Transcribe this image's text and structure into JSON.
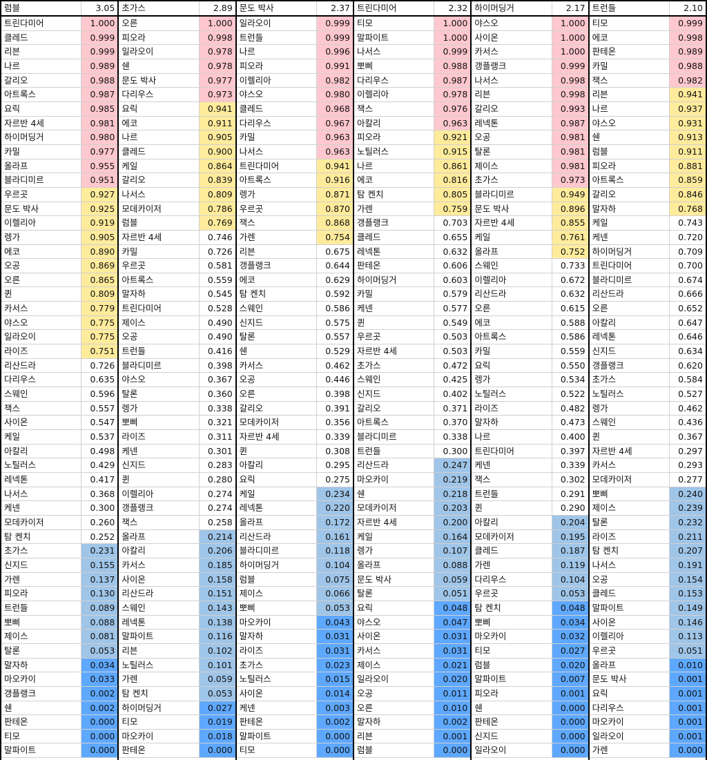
{
  "colors": {
    "high": "#ffc7ce",
    "mid": "#ffeb9c",
    "low": "#9fc5e8",
    "verylow": "#5ea8ff"
  },
  "thresholds": {
    "high": 0.95,
    "mid": 0.75,
    "low": 0.25,
    "verylow": 0.05
  },
  "columns": [
    {
      "header": "럼블",
      "score": "3.05",
      "rows": [
        [
          "트린다미어",
          "1.000"
        ],
        [
          "클레드",
          "0.999"
        ],
        [
          "리븐",
          "0.999"
        ],
        [
          "나르",
          "0.989"
        ],
        [
          "갈리오",
          "0.988"
        ],
        [
          "아트록스",
          "0.987"
        ],
        [
          "요릭",
          "0.985"
        ],
        [
          "자르반 4세",
          "0.981"
        ],
        [
          "하이머딩거",
          "0.980"
        ],
        [
          "카밀",
          "0.977"
        ],
        [
          "올라프",
          "0.955"
        ],
        [
          "블라디미르",
          "0.951"
        ],
        [
          "우르곳",
          "0.927"
        ],
        [
          "문도 박사",
          "0.925"
        ],
        [
          "이렐리아",
          "0.919"
        ],
        [
          "렝가",
          "0.905"
        ],
        [
          "에코",
          "0.890"
        ],
        [
          "오공",
          "0.869"
        ],
        [
          "오른",
          "0.865"
        ],
        [
          "퀸",
          "0.809"
        ],
        [
          "카서스",
          "0.779"
        ],
        [
          "야스오",
          "0.775"
        ],
        [
          "일라오이",
          "0.775"
        ],
        [
          "라이즈",
          "0.751"
        ],
        [
          "리산드라",
          "0.726"
        ],
        [
          "다리우스",
          "0.635"
        ],
        [
          "스웨인",
          "0.596"
        ],
        [
          "잭스",
          "0.557"
        ],
        [
          "사이온",
          "0.547"
        ],
        [
          "케일",
          "0.537"
        ],
        [
          "아칼리",
          "0.498"
        ],
        [
          "노틸러스",
          "0.429"
        ],
        [
          "레넥톤",
          "0.417"
        ],
        [
          "나서스",
          "0.368"
        ],
        [
          "케넨",
          "0.300"
        ],
        [
          "모데카이저",
          "0.260"
        ],
        [
          "탐 켄치",
          "0.252"
        ],
        [
          "초가스",
          "0.231"
        ],
        [
          "신지드",
          "0.155"
        ],
        [
          "가렌",
          "0.137"
        ],
        [
          "피오라",
          "0.130"
        ],
        [
          "트런들",
          "0.089"
        ],
        [
          "뽀삐",
          "0.088"
        ],
        [
          "제이스",
          "0.081"
        ],
        [
          "탈론",
          "0.053"
        ],
        [
          "말자하",
          "0.034"
        ],
        [
          "마오카이",
          "0.033"
        ],
        [
          "갱플랭크",
          "0.002"
        ],
        [
          "쉔",
          "0.002"
        ],
        [
          "판테온",
          "0.000"
        ],
        [
          "티모",
          "0.000"
        ],
        [
          "말파이트",
          "0.000"
        ]
      ]
    },
    {
      "header": "초가스",
      "score": "2.89",
      "rows": [
        [
          "오른",
          "1.000"
        ],
        [
          "피오라",
          "0.998"
        ],
        [
          "일라오이",
          "0.978"
        ],
        [
          "쉔",
          "0.978"
        ],
        [
          "문도 박사",
          "0.977"
        ],
        [
          "다리우스",
          "0.973"
        ],
        [
          "요릭",
          "0.941"
        ],
        [
          "에코",
          "0.911"
        ],
        [
          "나르",
          "0.905"
        ],
        [
          "클레드",
          "0.900"
        ],
        [
          "케일",
          "0.864"
        ],
        [
          "갈리오",
          "0.839"
        ],
        [
          "나서스",
          "0.809"
        ],
        [
          "모데카이저",
          "0.786"
        ],
        [
          "럼블",
          "0.769"
        ],
        [
          "자르반 4세",
          "0.746"
        ],
        [
          "카밀",
          "0.726"
        ],
        [
          "우르곳",
          "0.581"
        ],
        [
          "아트록스",
          "0.559"
        ],
        [
          "말자하",
          "0.545"
        ],
        [
          "트린다미어",
          "0.528"
        ],
        [
          "제이스",
          "0.490"
        ],
        [
          "오공",
          "0.490"
        ],
        [
          "트런들",
          "0.416"
        ],
        [
          "블라디미르",
          "0.398"
        ],
        [
          "야스오",
          "0.367"
        ],
        [
          "탈론",
          "0.360"
        ],
        [
          "렝가",
          "0.338"
        ],
        [
          "뽀삐",
          "0.321"
        ],
        [
          "라이즈",
          "0.311"
        ],
        [
          "케넨",
          "0.301"
        ],
        [
          "신지드",
          "0.283"
        ],
        [
          "퀸",
          "0.280"
        ],
        [
          "이렐리아",
          "0.274"
        ],
        [
          "갱플랭크",
          "0.274"
        ],
        [
          "잭스",
          "0.258"
        ],
        [
          "올라프",
          "0.214"
        ],
        [
          "아칼리",
          "0.206"
        ],
        [
          "카서스",
          "0.185"
        ],
        [
          "사이온",
          "0.158"
        ],
        [
          "리산드라",
          "0.151"
        ],
        [
          "스웨인",
          "0.143"
        ],
        [
          "레넥톤",
          "0.138"
        ],
        [
          "말파이트",
          "0.116"
        ],
        [
          "리븐",
          "0.102"
        ],
        [
          "노틸러스",
          "0.101"
        ],
        [
          "가렌",
          "0.059"
        ],
        [
          "탐 켄치",
          "0.053"
        ],
        [
          "하이머딩거",
          "0.027"
        ],
        [
          "티모",
          "0.019"
        ],
        [
          "마오카이",
          "0.018"
        ],
        [
          "판테온",
          "0.000"
        ]
      ]
    },
    {
      "header": "문도 박사",
      "score": "2.37",
      "rows": [
        [
          "일라오이",
          "0.999"
        ],
        [
          "트런들",
          "0.999"
        ],
        [
          "나르",
          "0.996"
        ],
        [
          "피오라",
          "0.991"
        ],
        [
          "이렐리아",
          "0.982"
        ],
        [
          "야스오",
          "0.980"
        ],
        [
          "클레드",
          "0.968"
        ],
        [
          "다리우스",
          "0.967"
        ],
        [
          "카밀",
          "0.963"
        ],
        [
          "나서스",
          "0.963"
        ],
        [
          "트린다미어",
          "0.941"
        ],
        [
          "아트록스",
          "0.916"
        ],
        [
          "렝가",
          "0.871"
        ],
        [
          "우르곳",
          "0.870"
        ],
        [
          "잭스",
          "0.868"
        ],
        [
          "가렌",
          "0.754"
        ],
        [
          "리븐",
          "0.675"
        ],
        [
          "갱플랭크",
          "0.644"
        ],
        [
          "에코",
          "0.629"
        ],
        [
          "탐 켄치",
          "0.592"
        ],
        [
          "스웨인",
          "0.586"
        ],
        [
          "신지드",
          "0.575"
        ],
        [
          "탈론",
          "0.557"
        ],
        [
          "쉔",
          "0.529"
        ],
        [
          "카서스",
          "0.462"
        ],
        [
          "오공",
          "0.446"
        ],
        [
          "오른",
          "0.398"
        ],
        [
          "갈리오",
          "0.391"
        ],
        [
          "모데카이저",
          "0.356"
        ],
        [
          "자르반 4세",
          "0.339"
        ],
        [
          "퀸",
          "0.308"
        ],
        [
          "아칼리",
          "0.295"
        ],
        [
          "요릭",
          "0.275"
        ],
        [
          "케일",
          "0.234"
        ],
        [
          "레넥톤",
          "0.220"
        ],
        [
          "올라프",
          "0.172"
        ],
        [
          "리산드라",
          "0.161"
        ],
        [
          "블라디미르",
          "0.118"
        ],
        [
          "하이머딩거",
          "0.104"
        ],
        [
          "럼블",
          "0.075"
        ],
        [
          "제이스",
          "0.066"
        ],
        [
          "뽀삐",
          "0.053"
        ],
        [
          "마오카이",
          "0.043"
        ],
        [
          "말자하",
          "0.031"
        ],
        [
          "라이즈",
          "0.031"
        ],
        [
          "초가스",
          "0.023"
        ],
        [
          "노틸러스",
          "0.015"
        ],
        [
          "사이온",
          "0.014"
        ],
        [
          "케넨",
          "0.003"
        ],
        [
          "판테온",
          "0.002"
        ],
        [
          "말파이트",
          "0.000"
        ],
        [
          "티모",
          "0.000"
        ]
      ]
    },
    {
      "header": "트린다미어",
      "score": "2.32",
      "rows": [
        [
          "티모",
          "1.000"
        ],
        [
          "말파이트",
          "1.000"
        ],
        [
          "나서스",
          "0.999"
        ],
        [
          "뽀삐",
          "0.988"
        ],
        [
          "다리우스",
          "0.987"
        ],
        [
          "이렐리아",
          "0.978"
        ],
        [
          "잭스",
          "0.976"
        ],
        [
          "아칼리",
          "0.963"
        ],
        [
          "피오라",
          "0.921"
        ],
        [
          "노틸러스",
          "0.915"
        ],
        [
          "나르",
          "0.861"
        ],
        [
          "에코",
          "0.816"
        ],
        [
          "탐 켄치",
          "0.805"
        ],
        [
          "가렌",
          "0.759"
        ],
        [
          "갱플랭크",
          "0.703"
        ],
        [
          "클레드",
          "0.655"
        ],
        [
          "레넥톤",
          "0.632"
        ],
        [
          "판테온",
          "0.606"
        ],
        [
          "하이머딩거",
          "0.603"
        ],
        [
          "카밀",
          "0.579"
        ],
        [
          "케넨",
          "0.577"
        ],
        [
          "퀸",
          "0.549"
        ],
        [
          "우르곳",
          "0.503"
        ],
        [
          "자르반 4세",
          "0.503"
        ],
        [
          "초가스",
          "0.472"
        ],
        [
          "스웨인",
          "0.425"
        ],
        [
          "신지드",
          "0.402"
        ],
        [
          "갈리오",
          "0.371"
        ],
        [
          "아트록스",
          "0.370"
        ],
        [
          "블라디미르",
          "0.338"
        ],
        [
          "트런들",
          "0.300"
        ],
        [
          "리산드라",
          "0.247"
        ],
        [
          "마오카이",
          "0.219"
        ],
        [
          "쉔",
          "0.218"
        ],
        [
          "모데카이저",
          "0.203"
        ],
        [
          "자르반 4세",
          "0.200"
        ],
        [
          "케일",
          "0.164"
        ],
        [
          "렝가",
          "0.107"
        ],
        [
          "올라프",
          "0.088"
        ],
        [
          "문도 박사",
          "0.059"
        ],
        [
          "탈론",
          "0.051"
        ],
        [
          "요릭",
          "0.048"
        ],
        [
          "야스오",
          "0.047"
        ],
        [
          "사이온",
          "0.031"
        ],
        [
          "카서스",
          "0.031"
        ],
        [
          "제이스",
          "0.021"
        ],
        [
          "일라오이",
          "0.020"
        ],
        [
          "오공",
          "0.011"
        ],
        [
          "오른",
          "0.010"
        ],
        [
          "말자하",
          "0.002"
        ],
        [
          "리븐",
          "0.001"
        ],
        [
          "럼블",
          "0.000"
        ]
      ]
    },
    {
      "header": "하이머딩거",
      "score": "2.17",
      "rows": [
        [
          "야스오",
          "1.000"
        ],
        [
          "사이온",
          "1.000"
        ],
        [
          "카서스",
          "1.000"
        ],
        [
          "갱플랭크",
          "0.999"
        ],
        [
          "나서스",
          "0.998"
        ],
        [
          "리븐",
          "0.998"
        ],
        [
          "갈리오",
          "0.993"
        ],
        [
          "레넥톤",
          "0.987"
        ],
        [
          "오공",
          "0.981"
        ],
        [
          "탈론",
          "0.981"
        ],
        [
          "제이스",
          "0.981"
        ],
        [
          "초가스",
          "0.973"
        ],
        [
          "블라디미르",
          "0.949"
        ],
        [
          "문도 박사",
          "0.896"
        ],
        [
          "자르반 4세",
          "0.855"
        ],
        [
          "케일",
          "0.761"
        ],
        [
          "올라프",
          "0.752"
        ],
        [
          "스웨인",
          "0.733"
        ],
        [
          "이렐리아",
          "0.672"
        ],
        [
          "리산드라",
          "0.632"
        ],
        [
          "오른",
          "0.615"
        ],
        [
          "에코",
          "0.588"
        ],
        [
          "아트록스",
          "0.586"
        ],
        [
          "카밀",
          "0.559"
        ],
        [
          "요릭",
          "0.550"
        ],
        [
          "렝가",
          "0.534"
        ],
        [
          "노틸러스",
          "0.522"
        ],
        [
          "라이즈",
          "0.482"
        ],
        [
          "말자하",
          "0.473"
        ],
        [
          "나르",
          "0.400"
        ],
        [
          "트린다미어",
          "0.397"
        ],
        [
          "케넨",
          "0.339"
        ],
        [
          "잭스",
          "0.302"
        ],
        [
          "트런들",
          "0.291"
        ],
        [
          "퀸",
          "0.290"
        ],
        [
          "아칼리",
          "0.204"
        ],
        [
          "모데카이저",
          "0.195"
        ],
        [
          "클레드",
          "0.187"
        ],
        [
          "가렌",
          "0.119"
        ],
        [
          "다리우스",
          "0.104"
        ],
        [
          "우르곳",
          "0.053"
        ],
        [
          "탐 켄치",
          "0.048"
        ],
        [
          "뽀삐",
          "0.034"
        ],
        [
          "마오카이",
          "0.032"
        ],
        [
          "티모",
          "0.027"
        ],
        [
          "럼블",
          "0.020"
        ],
        [
          "말파이트",
          "0.007"
        ],
        [
          "피오라",
          "0.001"
        ],
        [
          "쉔",
          "0.000"
        ],
        [
          "판테온",
          "0.000"
        ],
        [
          "신지드",
          "0.000"
        ],
        [
          "일라오이",
          "0.000"
        ]
      ]
    },
    {
      "header": "트런들",
      "score": "2.10",
      "rows": [
        [
          "티모",
          "0.999"
        ],
        [
          "에코",
          "0.998"
        ],
        [
          "판테온",
          "0.989"
        ],
        [
          "카밀",
          "0.988"
        ],
        [
          "잭스",
          "0.982"
        ],
        [
          "리븐",
          "0.941"
        ],
        [
          "나르",
          "0.937"
        ],
        [
          "야스오",
          "0.931"
        ],
        [
          "쉔",
          "0.913"
        ],
        [
          "럼블",
          "0.911"
        ],
        [
          "피오라",
          "0.881"
        ],
        [
          "아트록스",
          "0.859"
        ],
        [
          "갈리오",
          "0.846"
        ],
        [
          "말자하",
          "0.768"
        ],
        [
          "케일",
          "0.743"
        ],
        [
          "케넨",
          "0.720"
        ],
        [
          "하이머딩거",
          "0.709"
        ],
        [
          "트린다미어",
          "0.700"
        ],
        [
          "블라디미르",
          "0.674"
        ],
        [
          "리산드라",
          "0.666"
        ],
        [
          "오른",
          "0.652"
        ],
        [
          "아칼리",
          "0.647"
        ],
        [
          "레넥톤",
          "0.646"
        ],
        [
          "신지드",
          "0.634"
        ],
        [
          "갱플랭크",
          "0.620"
        ],
        [
          "초가스",
          "0.584"
        ],
        [
          "노틸러스",
          "0.527"
        ],
        [
          "렝가",
          "0.462"
        ],
        [
          "스웨인",
          "0.436"
        ],
        [
          "퀸",
          "0.367"
        ],
        [
          "자르반 4세",
          "0.297"
        ],
        [
          "카서스",
          "0.293"
        ],
        [
          "모데카이저",
          "0.277"
        ],
        [
          "뽀삐",
          "0.240"
        ],
        [
          "제이스",
          "0.239"
        ],
        [
          "탈론",
          "0.232"
        ],
        [
          "라이즈",
          "0.211"
        ],
        [
          "탐 켄치",
          "0.207"
        ],
        [
          "나서스",
          "0.191"
        ],
        [
          "오공",
          "0.154"
        ],
        [
          "클레드",
          "0.153"
        ],
        [
          "말파이트",
          "0.149"
        ],
        [
          "사이온",
          "0.146"
        ],
        [
          "이렐리아",
          "0.113"
        ],
        [
          "우르곳",
          "0.051"
        ],
        [
          "올라프",
          "0.010"
        ],
        [
          "문도 박사",
          "0.001"
        ],
        [
          "요릭",
          "0.001"
        ],
        [
          "다리우스",
          "0.001"
        ],
        [
          "마오카이",
          "0.001"
        ],
        [
          "일라오이",
          "0.001"
        ],
        [
          "가렌",
          "0.000"
        ]
      ]
    }
  ]
}
